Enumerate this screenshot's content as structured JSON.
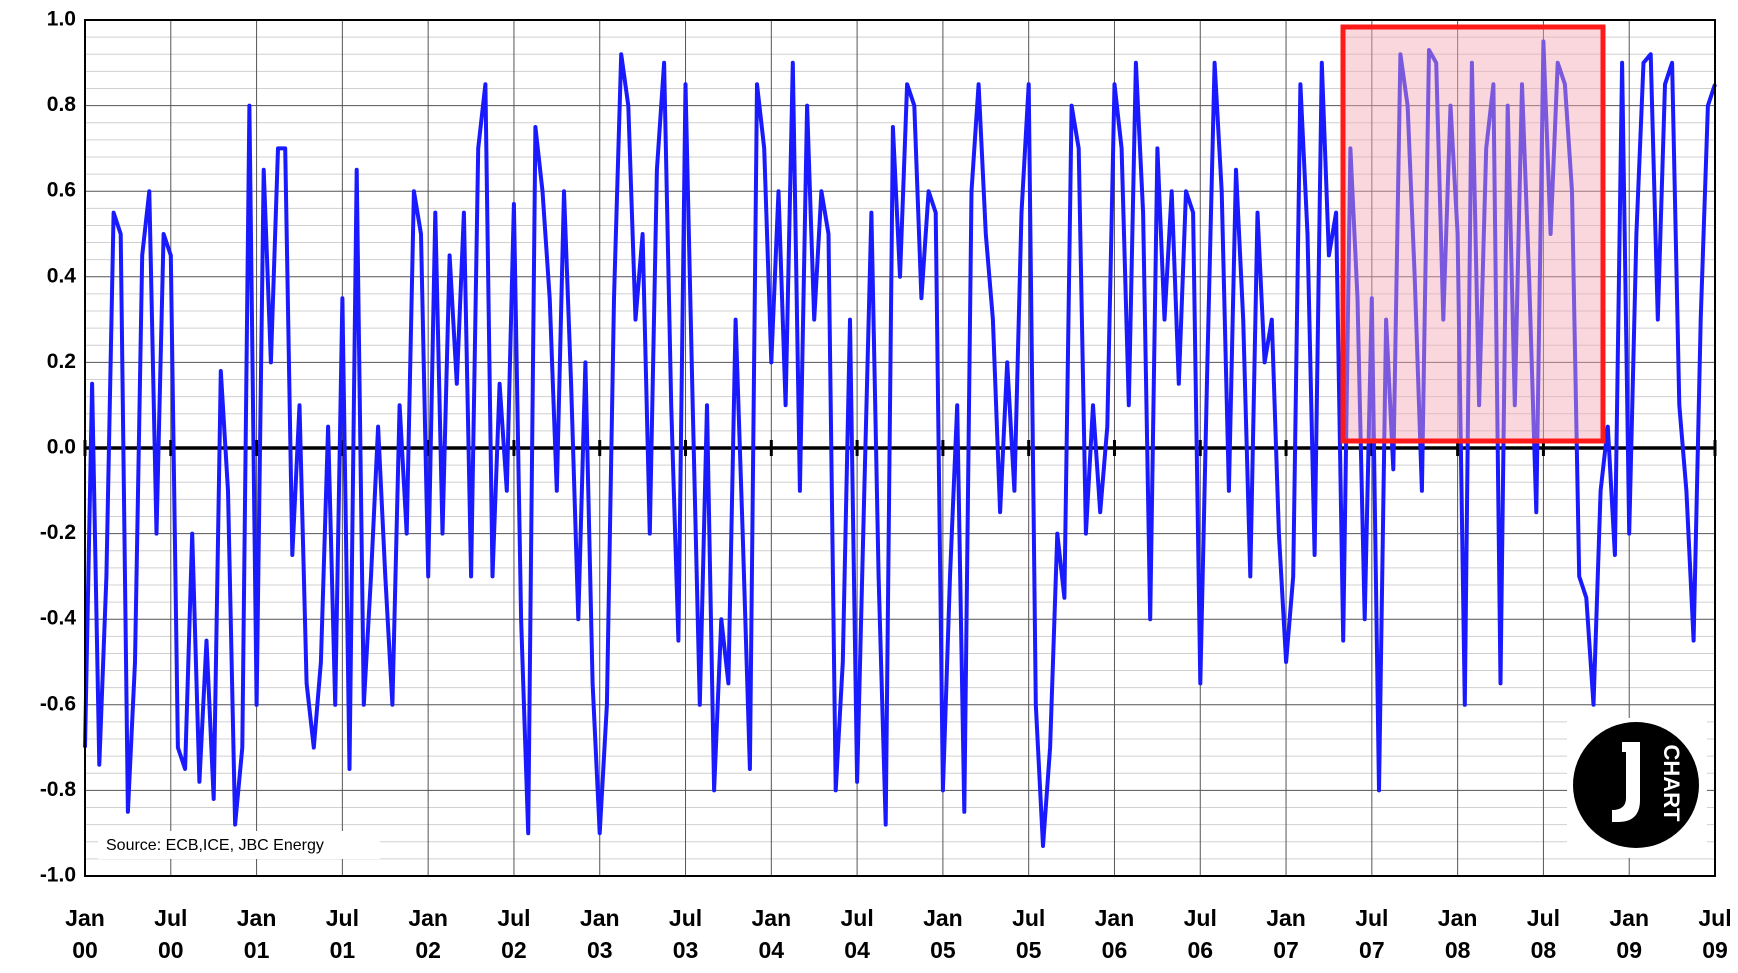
{
  "chart_data": {
    "type": "line",
    "annotation": "Source: ECB,ICE, JBC Energy",
    "logo": "CHART",
    "ylim": [
      -1,
      1
    ],
    "yticks": [
      {
        "value": -1,
        "label": "-1.0"
      },
      -0.8,
      -0.6,
      -0.4,
      -0.2,
      {
        "value": 0,
        "label": "0.0"
      },
      0.2,
      0.4,
      0.6,
      0.8,
      {
        "value": 1,
        "label": "1.0"
      }
    ],
    "xlim": [
      0,
      228
    ],
    "xticks": [
      {
        "value": 0,
        "label": "Jan 00"
      },
      {
        "value": 12,
        "label": "Jul 00"
      },
      {
        "value": 24,
        "label": "Jan 01"
      },
      {
        "value": 36,
        "label": "Jul 01"
      },
      {
        "value": 48,
        "label": "Jan 02"
      },
      {
        "value": 60,
        "label": "Jul 02"
      },
      {
        "value": 72,
        "label": "Jan 03"
      },
      {
        "value": 84,
        "label": "Jul 03"
      },
      {
        "value": 96,
        "label": "Jan 04"
      },
      {
        "value": 108,
        "label": "Jul 04"
      },
      {
        "value": 120,
        "label": "Jan 05"
      },
      {
        "value": 132,
        "label": "Jul 05"
      },
      {
        "value": 144,
        "label": "Jan 06"
      },
      {
        "value": 156,
        "label": "Jul 06"
      },
      {
        "value": 168,
        "label": "Jan 07"
      },
      {
        "value": 180,
        "label": "Jul 07"
      },
      {
        "value": 192,
        "label": "Jan 08"
      },
      {
        "value": 204,
        "label": "Jul 08"
      },
      {
        "value": 216,
        "label": "Jan 09"
      },
      {
        "value": 228,
        "label": "Jul 09"
      }
    ],
    "grid": true,
    "series": [
      {
        "color": "#1a1aff",
        "values": [
          -0.7,
          0.15,
          -0.74,
          -0.3,
          0.55,
          0.5,
          -0.85,
          -0.5,
          0.45,
          0.6,
          -0.2,
          0.5,
          0.45,
          -0.7,
          -0.75,
          -0.2,
          -0.78,
          -0.45,
          -0.82,
          0.18,
          -0.1,
          -0.88,
          -0.7,
          0.8,
          -0.6,
          0.65,
          0.2,
          0.7,
          0.7,
          -0.25,
          0.1,
          -0.55,
          -0.7,
          -0.5,
          0.05,
          -0.6,
          0.35,
          -0.75,
          0.65,
          -0.6,
          -0.3,
          0.05,
          -0.3,
          -0.6,
          0.1,
          -0.2,
          0.6,
          0.5,
          -0.3,
          0.55,
          -0.2,
          0.45,
          0.15,
          0.55,
          -0.3,
          0.7,
          0.85,
          -0.3,
          0.15,
          -0.1,
          0.57,
          -0.4,
          -0.9,
          0.75,
          0.6,
          0.35,
          -0.1,
          0.6,
          0.15,
          -0.4,
          0.2,
          -0.55,
          -0.9,
          -0.6,
          0.35,
          0.92,
          0.8,
          0.3,
          0.5,
          -0.2,
          0.65,
          0.9,
          0.1,
          -0.45,
          0.85,
          0.1,
          -0.6,
          0.1,
          -0.8,
          -0.4,
          -0.55,
          0.3,
          -0.2,
          -0.75,
          0.85,
          0.7,
          0.2,
          0.6,
          0.1,
          0.9,
          -0.1,
          0.8,
          0.3,
          0.6,
          0.5,
          -0.8,
          -0.5,
          0.3,
          -0.78,
          -0.1,
          0.55,
          -0.3,
          -0.88,
          0.75,
          0.4,
          0.85,
          0.8,
          0.35,
          0.6,
          0.55,
          -0.8,
          -0.3,
          0.1,
          -0.85,
          0.6,
          0.85,
          0.5,
          0.3,
          -0.15,
          0.2,
          -0.1,
          0.55,
          0.85,
          -0.6,
          -0.93,
          -0.7,
          -0.2,
          -0.35,
          0.8,
          0.7,
          -0.2,
          0.1,
          -0.15,
          0.05,
          0.85,
          0.7,
          0.1,
          0.9,
          0.55,
          -0.4,
          0.7,
          0.3,
          0.6,
          0.15,
          0.6,
          0.55,
          -0.55,
          0.2,
          0.9,
          0.6,
          -0.1,
          0.65,
          0.3,
          -0.3,
          0.55,
          0.2,
          0.3,
          -0.2,
          -0.5,
          -0.3,
          0.85,
          0.5,
          -0.25,
          0.9,
          0.45,
          0.55,
          -0.45,
          0.7,
          0.35,
          -0.4,
          0.35,
          -0.8,
          0.3,
          -0.05,
          0.92,
          0.8,
          0.4,
          -0.1,
          0.93,
          0.9,
          0.3,
          0.8,
          0.5,
          -0.6,
          0.9,
          0.1,
          0.7,
          0.85,
          -0.55,
          0.8,
          0.1,
          0.85,
          0.4,
          -0.15,
          0.95,
          0.5,
          0.9,
          0.85,
          0.6,
          -0.3,
          -0.35,
          -0.6,
          -0.1,
          0.05,
          -0.25,
          0.9,
          -0.2,
          0.5,
          0.9,
          0.92,
          0.3,
          0.85,
          0.9,
          0.1,
          -0.1,
          -0.45,
          0.3,
          0.8,
          0.85
        ]
      }
    ]
  }
}
